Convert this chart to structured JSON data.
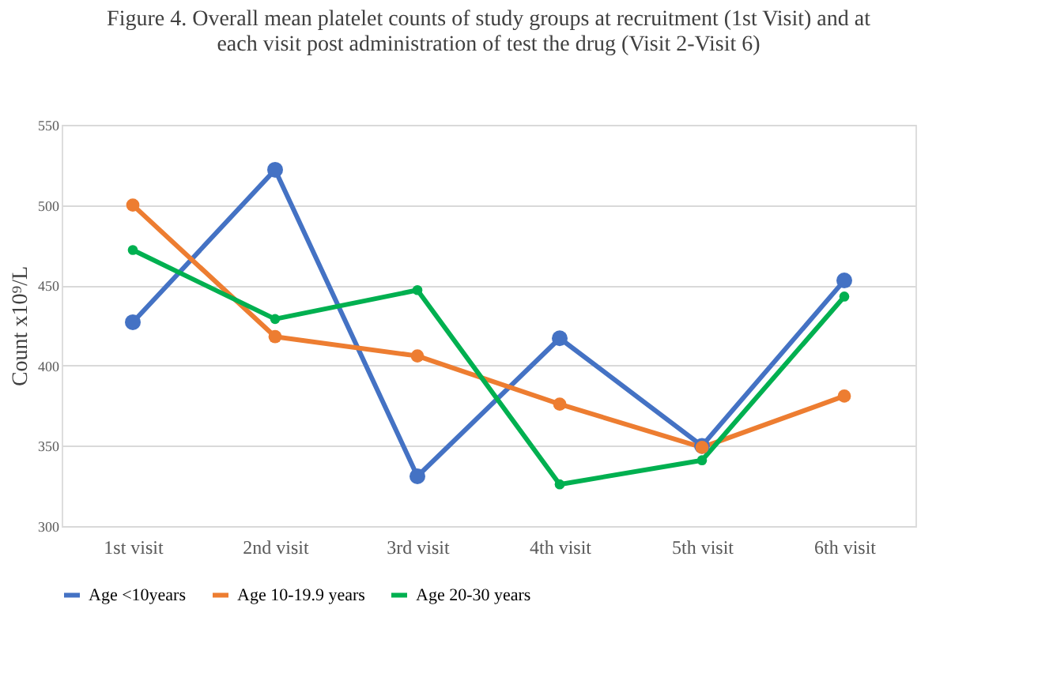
{
  "chart_data": {
    "type": "line",
    "title": [
      "Figure 4. Overall mean platelet counts of study groups at recruitment (1st Visit) and at",
      "each visit post administration of test the drug (Visit 2-Visit 6)"
    ],
    "ylabel": "Count x10⁹/L",
    "categories": [
      "1st visit",
      "2nd visit",
      "3rd visit",
      "4th visit",
      "5th visit",
      "6th visit"
    ],
    "series": [
      {
        "name": "Age <10years",
        "color": "#4472c4",
        "values": [
          427,
          522,
          331,
          417,
          350,
          453
        ]
      },
      {
        "name": "Age 10-19.9 years",
        "color": "#ed7d31",
        "values": [
          500,
          418,
          406,
          376,
          349,
          381
        ]
      },
      {
        "name": "Age 20-30 years",
        "color": "#00b050",
        "values": [
          472,
          429,
          447,
          326,
          341,
          443
        ]
      }
    ],
    "ylim": [
      300,
      550
    ],
    "yticks": [
      300,
      350,
      400,
      450,
      500,
      550
    ],
    "grid": "y",
    "legend": "bottom",
    "marker": "circle",
    "line_style": "solid"
  }
}
